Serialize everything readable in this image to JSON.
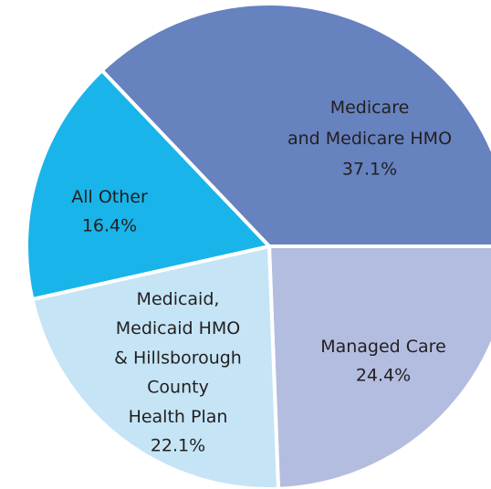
{
  "chart_data": {
    "type": "pie",
    "categories": [
      "Medicare\nand Medicare HMO",
      "Managed Care",
      "Medicaid,\nMedicaid HMO\n& Hillsborough\nCounty\nHealth Plan",
      "All Other"
    ],
    "values": [
      37.1,
      24.4,
      22.1,
      16.4
    ],
    "value_labels": [
      "37.1%",
      "24.4%",
      "22.1%",
      "16.4%"
    ],
    "colors": [
      "#6682bf",
      "#b3bde0",
      "#c5e5f6",
      "#19b4e9"
    ]
  }
}
